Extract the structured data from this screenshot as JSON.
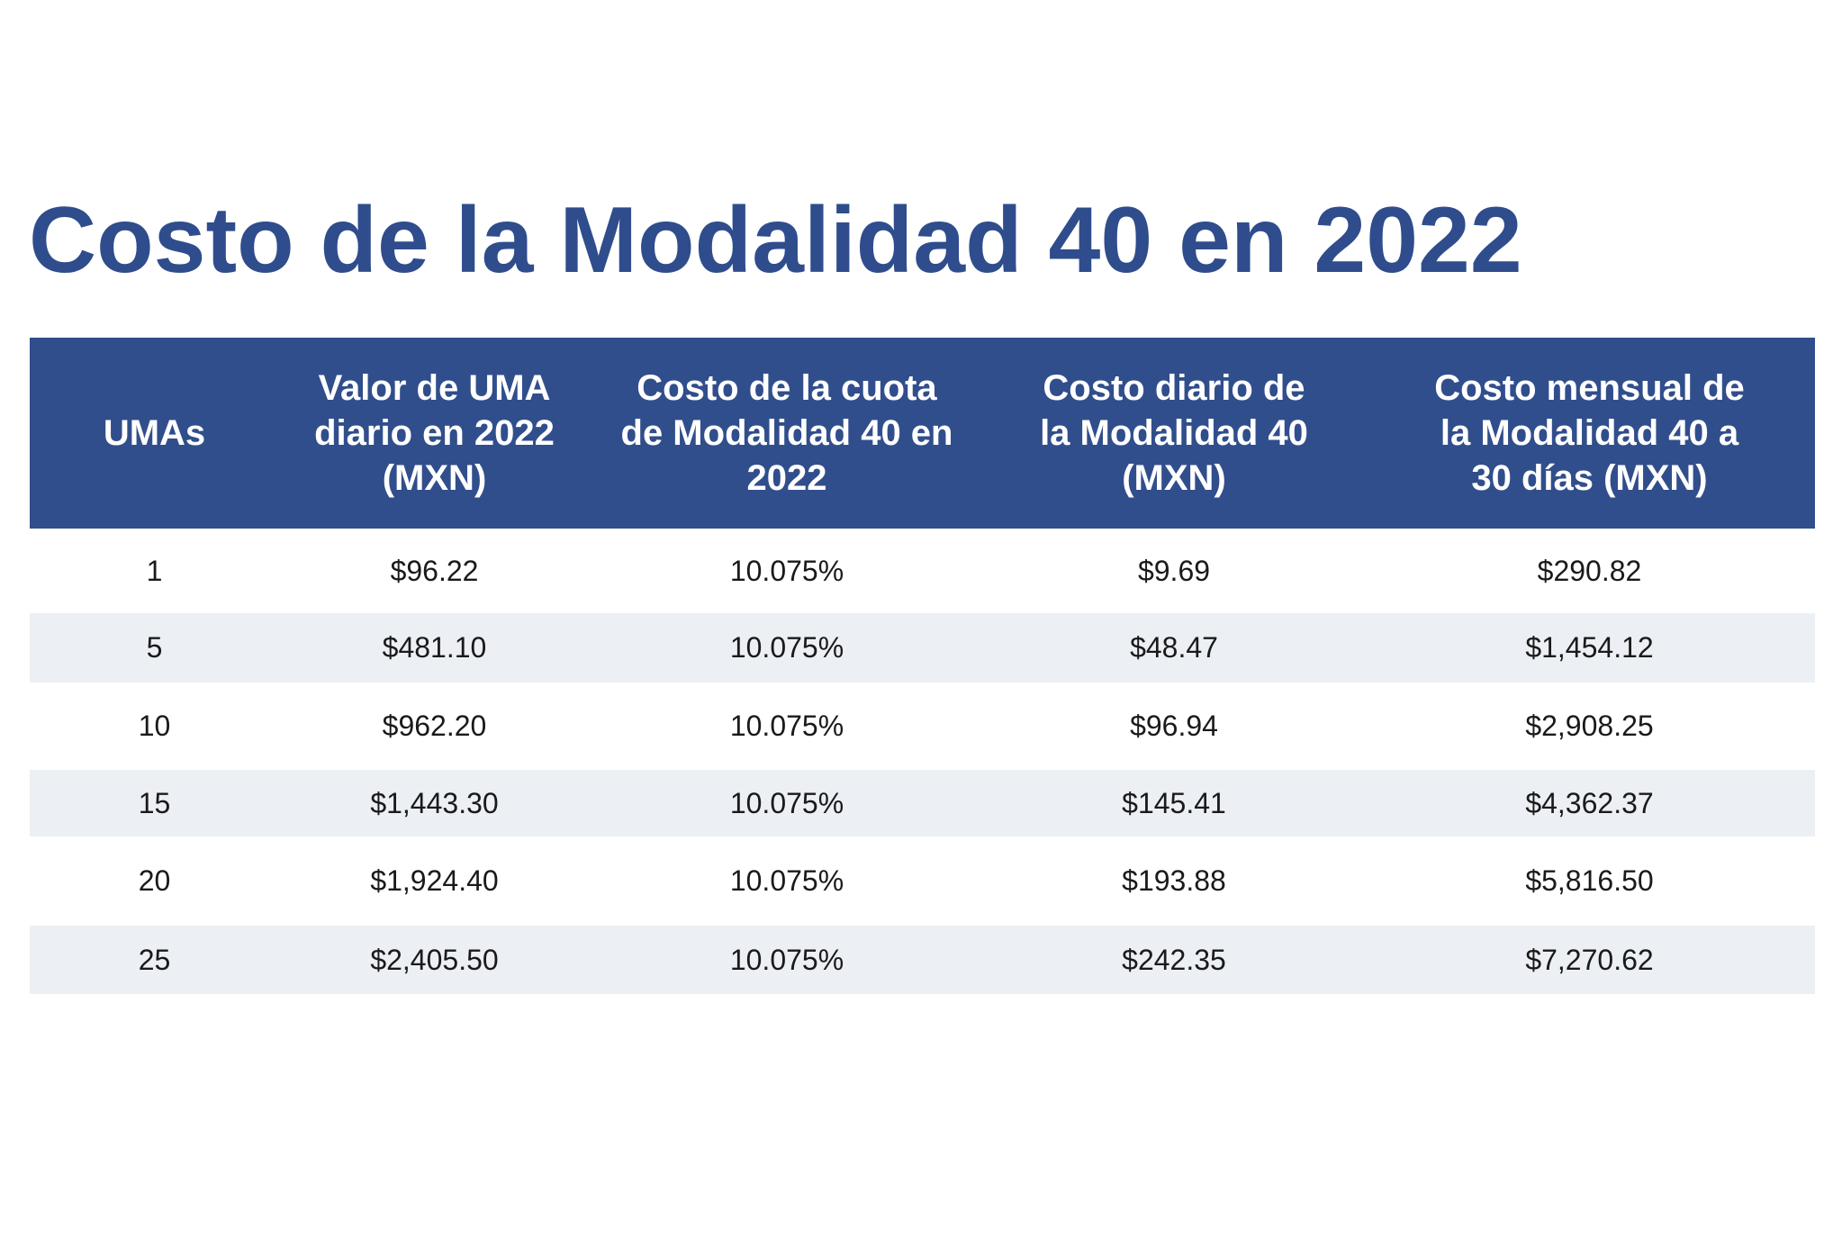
{
  "title": "Costo de la Modalidad 40 en 2022",
  "table": {
    "headers": [
      "UMAs",
      "Valor de UMA diario en 2022 (MXN)",
      "Costo de la cuota de Modalidad 40 en 2022",
      "Costo diario de la Modalidad 40 (MXN)",
      "Costo mensual de la Modalidad 40 a 30 días (MXN)"
    ],
    "rows": [
      [
        "1",
        "$96.22",
        "10.075%",
        "$9.69",
        "$290.82"
      ],
      [
        "5",
        "$481.10",
        "10.075%",
        "$48.47",
        "$1,454.12"
      ],
      [
        "10",
        "$962.20",
        "10.075%",
        "$96.94",
        "$2,908.25"
      ],
      [
        "15",
        "$1,443.30",
        "10.075%",
        "$145.41",
        "$4,362.37"
      ],
      [
        "20",
        "$1,924.40",
        "10.075%",
        "$193.88",
        "$5,816.50"
      ],
      [
        "25",
        "$2,405.50",
        "10.075%",
        "$242.35",
        "$7,270.62"
      ]
    ]
  },
  "colors": {
    "header_bg": "#314e8c",
    "title": "#2f4d8c",
    "stripe": "#eceff4"
  }
}
